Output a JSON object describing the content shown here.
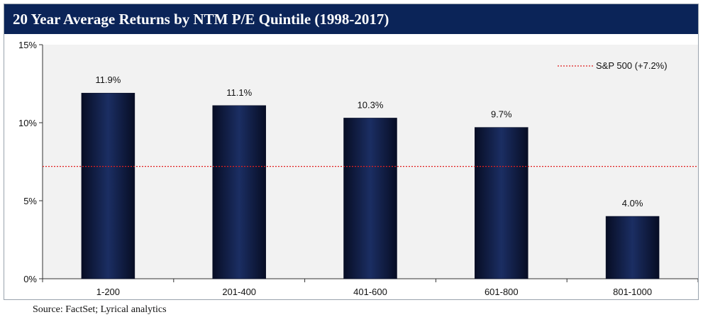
{
  "chart_data": {
    "type": "bar",
    "title": "20 Year Average Returns by NTM P/E Quintile (1998-2017)",
    "categories": [
      "1-200",
      "201-400",
      "401-600",
      "601-800",
      "801-1000"
    ],
    "values": [
      11.9,
      11.1,
      10.3,
      9.7,
      4.0
    ],
    "data_labels": [
      "11.9%",
      "11.1%",
      "10.3%",
      "9.7%",
      "4.0%"
    ],
    "value_unit": "%",
    "xlabel": "",
    "ylabel": "",
    "ylim": [
      0,
      15
    ],
    "y_ticks": [
      0,
      5,
      10,
      15
    ],
    "y_tick_labels": [
      "0%",
      "5%",
      "10%",
      "15%"
    ],
    "grid": false,
    "reference_line": {
      "name": "S&P 500 (+7.2%)",
      "value": 7.2,
      "style": "dotted",
      "color": "#e02020"
    },
    "legend": {
      "position": "top-right",
      "entries": [
        "S&P 500 (+7.2%)"
      ]
    },
    "colors": {
      "title_bar": "#0b2458",
      "bar": "#14234f",
      "bar_edge": "#070d24",
      "plot_background": "#f2f2f2"
    }
  },
  "source": "Source: FactSet; Lyrical analytics"
}
